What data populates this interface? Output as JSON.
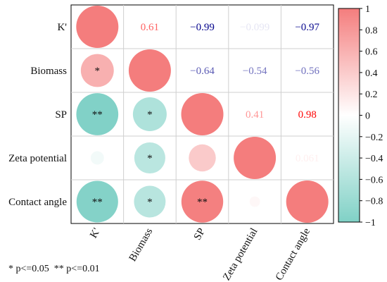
{
  "chart_data": {
    "type": "heatmap",
    "variables": [
      "K'",
      "Biomass",
      "SP",
      "Zeta potential",
      "Contact angle"
    ],
    "correlation": [
      [
        1,
        0.61,
        -0.99,
        -0.099,
        -0.97
      ],
      [
        0.61,
        1,
        -0.64,
        -0.54,
        -0.56
      ],
      [
        -0.99,
        -0.64,
        1,
        0.41,
        0.98
      ],
      [
        -0.099,
        -0.54,
        0.41,
        1,
        0.061
      ],
      [
        -0.97,
        -0.56,
        0.98,
        0.061,
        1
      ]
    ],
    "upper_labels": [
      {
        "row": 0,
        "col": 1,
        "text": "0.61"
      },
      {
        "row": 0,
        "col": 2,
        "text": "−0.99"
      },
      {
        "row": 0,
        "col": 3,
        "text": "−0.099"
      },
      {
        "row": 0,
        "col": 4,
        "text": "−0.97"
      },
      {
        "row": 1,
        "col": 2,
        "text": "−0.64"
      },
      {
        "row": 1,
        "col": 3,
        "text": "−0.54"
      },
      {
        "row": 1,
        "col": 4,
        "text": "−0.56"
      },
      {
        "row": 2,
        "col": 3,
        "text": "0.41"
      },
      {
        "row": 2,
        "col": 4,
        "text": "0.98"
      },
      {
        "row": 3,
        "col": 4,
        "text": "0.061"
      }
    ],
    "significance": [
      {
        "row": 1,
        "col": 0,
        "text": "*"
      },
      {
        "row": 2,
        "col": 0,
        "text": "**"
      },
      {
        "row": 2,
        "col": 1,
        "text": "*"
      },
      {
        "row": 3,
        "col": 1,
        "text": "*"
      },
      {
        "row": 4,
        "col": 0,
        "text": "**"
      },
      {
        "row": 4,
        "col": 1,
        "text": "*"
      },
      {
        "row": 4,
        "col": 2,
        "text": "**"
      }
    ],
    "colorbar": {
      "range": [
        -1,
        1
      ],
      "ticks": [
        "1",
        "0.8",
        "0.6",
        "0.4",
        "0.2",
        "0",
        "−0.2",
        "−0.4",
        "−0.6",
        "−0.8",
        "−1"
      ],
      "positive_color": "#f47d7d",
      "negative_color": "#80d1c6",
      "zero_color": "#ffffff",
      "number_positive_color": "#ff0000",
      "number_negative_color": "#00008b"
    }
  },
  "footnote": "* p<=0.05  ** p<=0.01"
}
